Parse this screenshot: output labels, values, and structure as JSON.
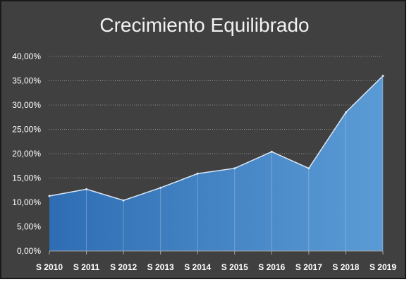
{
  "chart_data": {
    "type": "area",
    "title": "Crecimiento Equilibrado",
    "xlabel": "",
    "ylabel": "",
    "categories": [
      "S 2010",
      "S 2011",
      "S 2012",
      "S 2013",
      "S 2014",
      "S 2015",
      "S 2016",
      "S 2017",
      "S 2018",
      "S 2019"
    ],
    "values": [
      11.3,
      12.7,
      10.4,
      13.0,
      15.9,
      17.0,
      20.4,
      17.0,
      28.5,
      36.0
    ],
    "ylim": [
      0,
      40
    ],
    "yticks": [
      "0,00%",
      "5,00%",
      "10,00%",
      "15,00%",
      "20,00%",
      "25,00%",
      "30,00%",
      "35,00%",
      "40,00%"
    ],
    "grid": true,
    "colors": {
      "background": "#404040",
      "fill_left": "#2e6db3",
      "fill_right": "#5b9bd5",
      "line": "#dbe7f5",
      "gridline": "#8a8a8a"
    }
  }
}
